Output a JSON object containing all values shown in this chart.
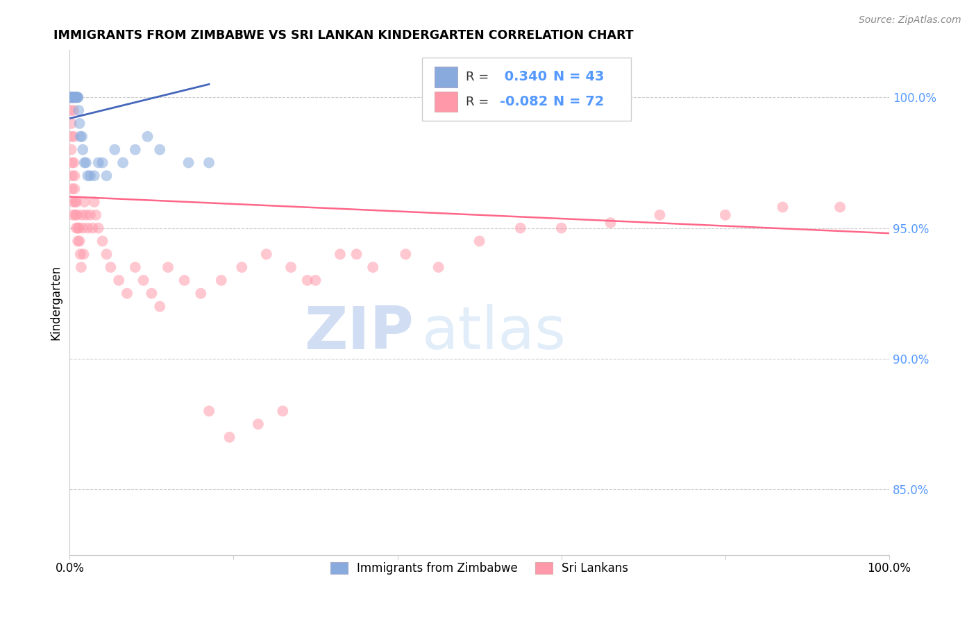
{
  "title": "IMMIGRANTS FROM ZIMBABWE VS SRI LANKAN KINDERGARTEN CORRELATION CHART",
  "source": "Source: ZipAtlas.com",
  "ylabel": "Kindergarten",
  "yticks": [
    85.0,
    90.0,
    95.0,
    100.0
  ],
  "ytick_labels": [
    "85.0%",
    "90.0%",
    "95.0%",
    "100.0%"
  ],
  "xlim": [
    0.0,
    1.0
  ],
  "ylim": [
    82.5,
    101.8
  ],
  "legend_label1": "Immigrants from Zimbabwe",
  "legend_label2": "Sri Lankans",
  "R1": 0.34,
  "N1": 43,
  "R2": -0.082,
  "N2": 72,
  "color_blue": "#88AADD",
  "color_pink": "#FF99AA",
  "line_color_blue": "#4466BB",
  "line_color_pink": "#FF6688",
  "watermark_zip": "ZIP",
  "watermark_atlas": "atlas",
  "blue_points_x": [
    0.001,
    0.001,
    0.002,
    0.002,
    0.002,
    0.003,
    0.003,
    0.003,
    0.004,
    0.004,
    0.004,
    0.005,
    0.005,
    0.005,
    0.006,
    0.006,
    0.007,
    0.007,
    0.008,
    0.008,
    0.009,
    0.01,
    0.01,
    0.011,
    0.012,
    0.013,
    0.015,
    0.016,
    0.018,
    0.02,
    0.022,
    0.025,
    0.03,
    0.035,
    0.04,
    0.045,
    0.055,
    0.065,
    0.08,
    0.095,
    0.11,
    0.145,
    0.17
  ],
  "blue_points_y": [
    100.0,
    100.0,
    100.0,
    100.0,
    100.0,
    100.0,
    100.0,
    100.0,
    100.0,
    100.0,
    100.0,
    100.0,
    100.0,
    100.0,
    100.0,
    100.0,
    100.0,
    100.0,
    100.0,
    100.0,
    100.0,
    100.0,
    100.0,
    99.5,
    99.0,
    98.5,
    98.5,
    98.0,
    97.5,
    97.5,
    97.0,
    97.0,
    97.0,
    97.5,
    97.5,
    97.0,
    98.0,
    97.5,
    98.0,
    98.5,
    98.0,
    97.5,
    97.5
  ],
  "pink_points_x": [
    0.001,
    0.001,
    0.002,
    0.002,
    0.002,
    0.003,
    0.003,
    0.003,
    0.004,
    0.004,
    0.005,
    0.005,
    0.005,
    0.006,
    0.006,
    0.007,
    0.007,
    0.008,
    0.008,
    0.009,
    0.01,
    0.01,
    0.011,
    0.012,
    0.013,
    0.014,
    0.015,
    0.016,
    0.017,
    0.018,
    0.02,
    0.022,
    0.025,
    0.028,
    0.03,
    0.032,
    0.035,
    0.04,
    0.045,
    0.05,
    0.06,
    0.07,
    0.08,
    0.09,
    0.1,
    0.11,
    0.12,
    0.14,
    0.16,
    0.185,
    0.21,
    0.24,
    0.27,
    0.3,
    0.33,
    0.37,
    0.41,
    0.45,
    0.5,
    0.55,
    0.6,
    0.66,
    0.72,
    0.8,
    0.87,
    0.94,
    0.17,
    0.195,
    0.23,
    0.26,
    0.29,
    0.35
  ],
  "pink_points_y": [
    100.0,
    99.5,
    99.0,
    98.5,
    98.0,
    97.5,
    97.0,
    96.5,
    96.0,
    95.5,
    99.5,
    98.5,
    97.5,
    97.0,
    96.5,
    96.0,
    95.5,
    95.0,
    96.0,
    95.5,
    95.0,
    94.5,
    95.0,
    94.5,
    94.0,
    93.5,
    95.5,
    95.0,
    94.0,
    96.0,
    95.5,
    95.0,
    95.5,
    95.0,
    96.0,
    95.5,
    95.0,
    94.5,
    94.0,
    93.5,
    93.0,
    92.5,
    93.5,
    93.0,
    92.5,
    92.0,
    93.5,
    93.0,
    92.5,
    93.0,
    93.5,
    94.0,
    93.5,
    93.0,
    94.0,
    93.5,
    94.0,
    93.5,
    94.5,
    95.0,
    95.0,
    95.2,
    95.5,
    95.5,
    95.8,
    95.8,
    88.0,
    87.0,
    87.5,
    88.0,
    93.0,
    94.0
  ],
  "blue_trend_x": [
    0.001,
    0.17
  ],
  "blue_trend_y": [
    99.2,
    100.5
  ],
  "pink_trend_x": [
    0.0,
    1.0
  ],
  "pink_trend_y": [
    96.2,
    94.8
  ]
}
